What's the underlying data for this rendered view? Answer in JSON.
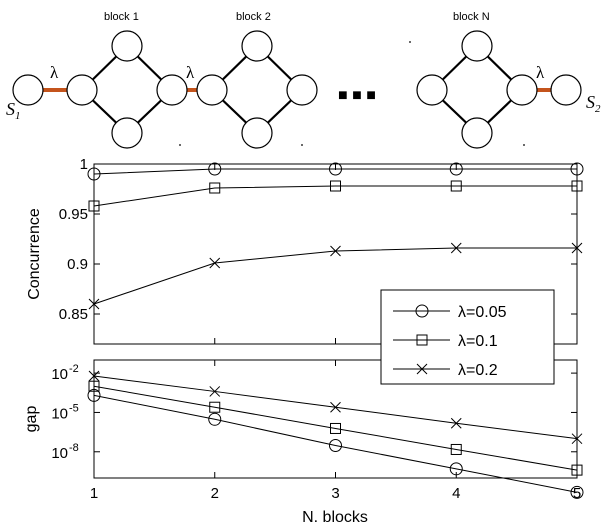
{
  "diagram": {
    "blocks": [
      "block 1",
      "block 2",
      "block N"
    ],
    "coupling_symbol": "λ",
    "ellipsis": "■ ■ ■",
    "sites": {
      "left": "S",
      "left_sub": "1",
      "right": "S",
      "right_sub": "2"
    }
  },
  "chart_data": [
    {
      "type": "line",
      "ylabel": "Concurrence",
      "x": [
        1,
        2,
        3,
        4,
        5
      ],
      "xlim": [
        1,
        5
      ],
      "ylim": [
        0.82,
        1.0
      ],
      "yticks": [
        "0.85",
        "0.9",
        "0.95",
        "1"
      ],
      "series": [
        {
          "name": "λ=0.05",
          "marker": "circle",
          "values": [
            0.99,
            0.995,
            0.995,
            0.995,
            0.995
          ]
        },
        {
          "name": "λ=0.1",
          "marker": "square",
          "values": [
            0.958,
            0.976,
            0.978,
            0.978,
            0.978
          ]
        },
        {
          "name": "λ=0.2",
          "marker": "x",
          "values": [
            0.86,
            0.901,
            0.913,
            0.916,
            0.916
          ]
        }
      ],
      "legend": {
        "position": "lower-right",
        "entries": [
          "λ=0.05",
          "λ=0.1",
          "λ=0.2"
        ]
      }
    },
    {
      "type": "line",
      "ylabel": "gap",
      "xlabel": "N. blocks",
      "x": [
        1,
        2,
        3,
        4,
        5
      ],
      "xticks": [
        "1",
        "2",
        "3",
        "4",
        "5"
      ],
      "xlim": [
        1,
        5
      ],
      "yscale": "log",
      "ylim_log10": [
        -10,
        -1
      ],
      "yticks": [
        {
          "base": "10",
          "exp": "-2"
        },
        {
          "base": "10",
          "exp": "-5"
        },
        {
          "base": "10",
          "exp": "-8"
        }
      ],
      "series": [
        {
          "name": "λ=0.05",
          "marker": "circle",
          "values": [
            0.0002,
            3e-06,
            3e-08,
            5e-10,
            8e-12
          ]
        },
        {
          "name": "λ=0.1",
          "marker": "square",
          "values": [
            0.001,
            2.5e-05,
            6e-07,
            1.5e-08,
            4e-10
          ]
        },
        {
          "name": "λ=0.2",
          "marker": "x",
          "values": [
            0.006,
            0.0004,
            2.5e-05,
            1.5e-06,
            1e-07
          ]
        }
      ]
    }
  ]
}
